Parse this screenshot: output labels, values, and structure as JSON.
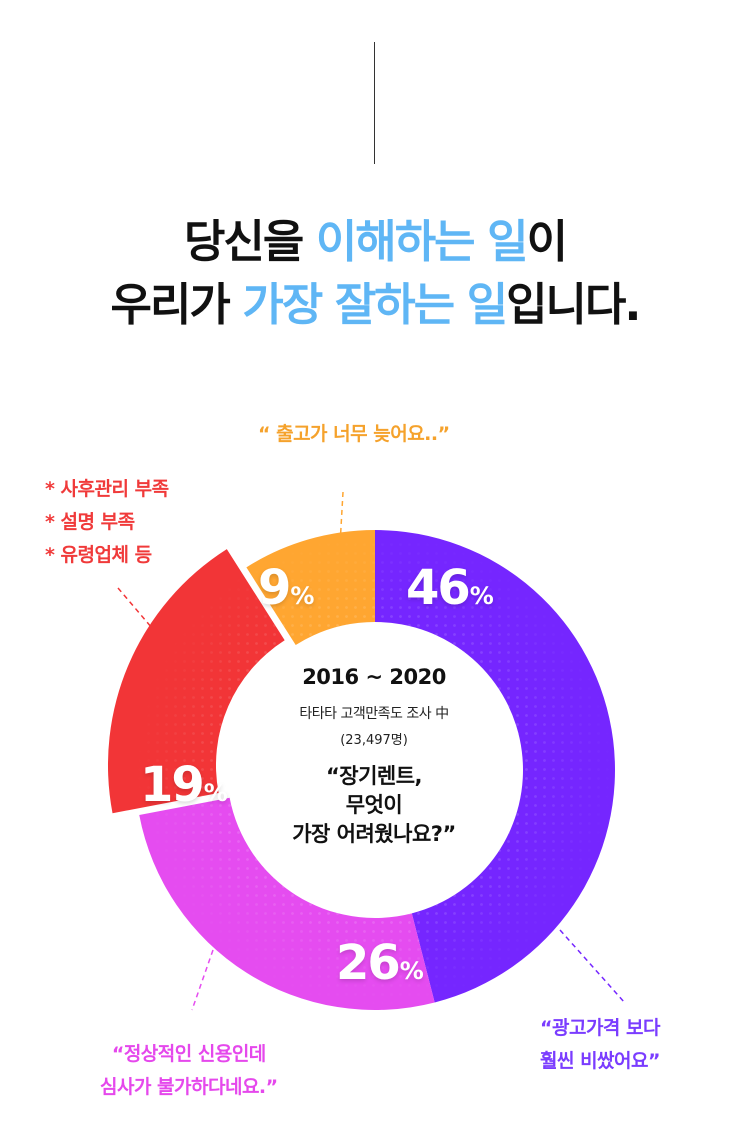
{
  "headline": {
    "line1": [
      {
        "text": "당신을 ",
        "highlight": false
      },
      {
        "text": "이해하는 일",
        "highlight": true
      },
      {
        "text": "이",
        "highlight": false
      }
    ],
    "line2": [
      {
        "text": "우리가 ",
        "highlight": false
      },
      {
        "text": "가장 잘하는 일",
        "highlight": true
      },
      {
        "text": "입니다.",
        "highlight": false
      }
    ]
  },
  "center": {
    "years": "2016 ~ 2020",
    "survey": "타타타 고객만족도 조사 中",
    "respondents": "(23,497명)",
    "question": [
      "“장기렌트,",
      "무엇이",
      "가장 어려웠나요?”"
    ]
  },
  "callouts": {
    "orange": [
      "“ 출고가 너무 늦어요..”"
    ],
    "red": [
      "* 사후관리 부족",
      "* 설명 부족",
      "* 유령업체 등"
    ],
    "purple": [
      "“광고가격 보다",
      "훨씬 비쌌어요”"
    ],
    "pink": [
      "“정상적인 신용인데",
      "심사가 불가하다네요.”"
    ]
  },
  "colors": {
    "purple": "#7526ff",
    "pink": "#e54cf0",
    "red": "#f23537",
    "orange": "#ffa631",
    "highlight_blue": "#5fb6f5"
  },
  "chart_data": {
    "type": "pie",
    "style": "donut",
    "title": "",
    "slices": [
      {
        "label": "46",
        "unit": "%",
        "value": 46,
        "color": "#7526ff"
      },
      {
        "label": "26",
        "unit": "%",
        "value": 26,
        "color": "#e54cf0"
      },
      {
        "label": "19",
        "unit": "%",
        "value": 19,
        "color": "#f23537"
      },
      {
        "label": "9",
        "unit": "%",
        "value": 9,
        "color": "#ffa631"
      }
    ]
  }
}
